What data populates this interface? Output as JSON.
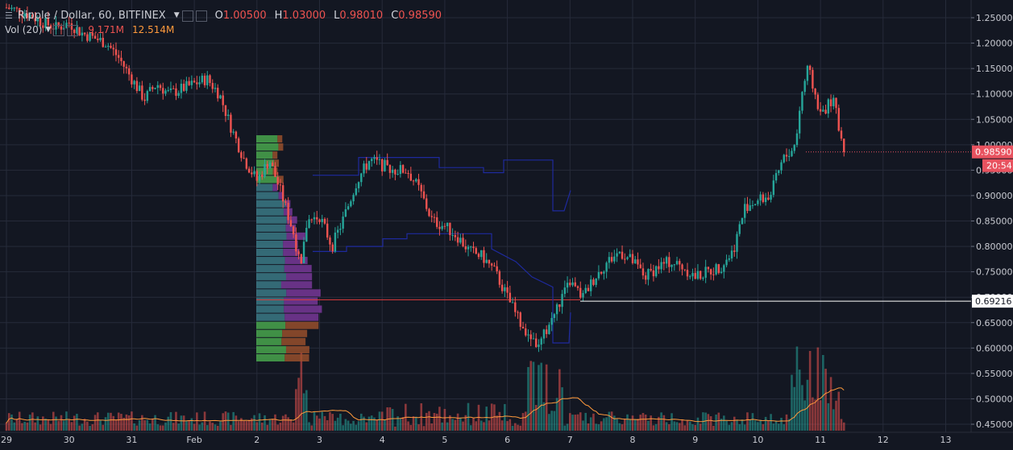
{
  "legend": {
    "symbol": "Ripple / Dollar, 60, BITFINEX",
    "open_label": "O",
    "open": "1.00500",
    "high_label": "H",
    "high": "1.03000",
    "low_label": "L",
    "low": "0.98010",
    "close_label": "C",
    "close": "0.98590",
    "vol_label": "Vol (20)",
    "vol_value": "9.171M",
    "vol_ma": "12.514M"
  },
  "price_axis": {
    "labels": [
      "1.25000",
      "1.20000",
      "1.15000",
      "1.10000",
      "1.05000",
      "1.00000",
      "0.95000",
      "0.90000",
      "0.85000",
      "0.80000",
      "0.75000",
      "0.70000",
      "0.65000",
      "0.60000",
      "0.55000",
      "0.50000",
      "0.45000"
    ],
    "current_price": "0.98590",
    "countdown": "20:54",
    "line_price": "0.69216"
  },
  "time_axis": {
    "labels": [
      "29",
      "30",
      "31",
      "Feb",
      "2",
      "3",
      "4",
      "5",
      "6",
      "7",
      "8",
      "9",
      "10",
      "11",
      "12",
      "13"
    ]
  },
  "colors": {
    "background": "#131722",
    "grid": "#262b3a",
    "up": "#26a69a",
    "down": "#ef5350",
    "volume_ma": "#ff9a3c",
    "range_line": "#1e2a9e",
    "price_badge": "#e8525f"
  },
  "chart_data": {
    "type": "candlestick",
    "title": "Ripple / Dollar, 60, BITFINEX",
    "ylim": [
      0.43,
      1.265
    ],
    "x": [
      "29",
      "30",
      "31",
      "Feb",
      "2",
      "3",
      "4",
      "5",
      "6",
      "7",
      "8",
      "9",
      "10",
      "11",
      "12",
      "13"
    ],
    "close_path": [
      [
        29.0,
        1.27
      ],
      [
        29.3,
        1.26
      ],
      [
        29.6,
        1.24
      ],
      [
        29.8,
        1.23
      ],
      [
        30.0,
        1.24
      ],
      [
        30.2,
        1.22
      ],
      [
        30.4,
        1.21
      ],
      [
        30.6,
        1.2
      ],
      [
        30.8,
        1.17
      ],
      [
        31.0,
        1.13
      ],
      [
        31.2,
        1.09
      ],
      [
        31.4,
        1.12
      ],
      [
        31.6,
        1.1
      ],
      [
        31.8,
        1.11
      ],
      [
        32.0,
        1.12
      ],
      [
        32.2,
        1.13
      ],
      [
        32.4,
        1.1
      ],
      [
        32.6,
        1.03
      ],
      [
        32.8,
        0.97
      ],
      [
        33.0,
        0.93
      ],
      [
        33.2,
        0.97
      ],
      [
        33.4,
        0.9
      ],
      [
        33.6,
        0.82
      ],
      [
        33.7,
        0.75
      ],
      [
        33.8,
        0.85
      ],
      [
        34.0,
        0.86
      ],
      [
        34.2,
        0.8
      ],
      [
        34.4,
        0.86
      ],
      [
        34.6,
        0.93
      ],
      [
        34.8,
        0.97
      ],
      [
        35.0,
        0.96
      ],
      [
        35.2,
        0.95
      ],
      [
        35.4,
        0.95
      ],
      [
        35.6,
        0.91
      ],
      [
        35.8,
        0.85
      ],
      [
        36.0,
        0.84
      ],
      [
        36.2,
        0.82
      ],
      [
        36.4,
        0.79
      ],
      [
        36.6,
        0.78
      ],
      [
        36.8,
        0.75
      ],
      [
        37.0,
        0.7
      ],
      [
        37.2,
        0.65
      ],
      [
        37.4,
        0.62
      ],
      [
        37.5,
        0.6
      ],
      [
        37.6,
        0.63
      ],
      [
        37.8,
        0.68
      ],
      [
        38.0,
        0.73
      ],
      [
        38.2,
        0.7
      ],
      [
        38.4,
        0.74
      ],
      [
        38.6,
        0.77
      ],
      [
        38.8,
        0.79
      ],
      [
        39.0,
        0.77
      ],
      [
        39.2,
        0.74
      ],
      [
        39.4,
        0.76
      ],
      [
        39.6,
        0.77
      ],
      [
        39.8,
        0.76
      ],
      [
        40.0,
        0.74
      ],
      [
        40.2,
        0.75
      ],
      [
        40.4,
        0.76
      ],
      [
        40.6,
        0.79
      ],
      [
        40.8,
        0.88
      ],
      [
        41.0,
        0.89
      ],
      [
        41.2,
        0.9
      ],
      [
        41.4,
        0.97
      ],
      [
        41.6,
        1.0
      ],
      [
        41.7,
        1.1
      ],
      [
        41.8,
        1.15
      ],
      [
        42.0,
        1.06
      ],
      [
        42.2,
        1.09
      ],
      [
        42.3,
        1.03
      ],
      [
        42.4,
        0.98
      ]
    ],
    "annotations": [
      "0.69216"
    ]
  }
}
